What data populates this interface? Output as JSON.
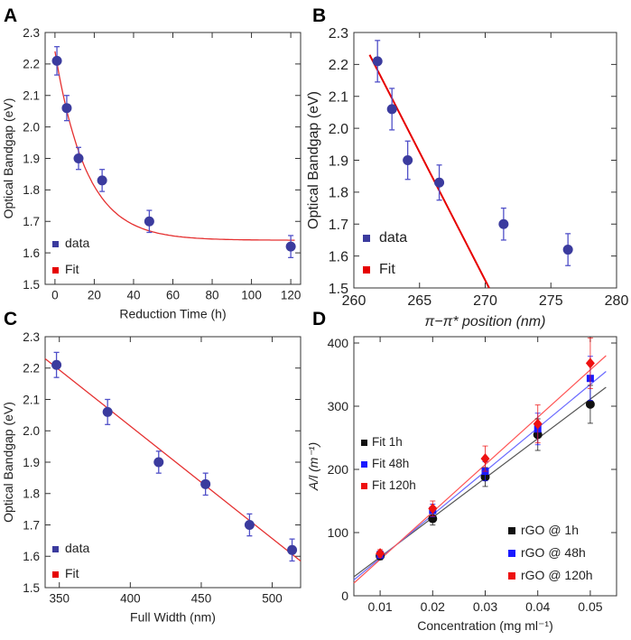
{
  "colors": {
    "marker": "#3b3b9e",
    "error": "#5050c8",
    "fit": "#e53030",
    "fit_bright": "#e60000",
    "black": "#111111",
    "blue": "#1a1aff",
    "red": "#ee1111",
    "axis": "#333333"
  },
  "chart_data": [
    {
      "panel": "A",
      "type": "scatter",
      "xlabel": "Reduction Time (h)",
      "ylabel": "Optical Bandgap (eV)",
      "xlim": [
        -5,
        125
      ],
      "ylim": [
        1.5,
        2.3
      ],
      "xticks": [
        0,
        20,
        40,
        60,
        80,
        100,
        120
      ],
      "yticks": [
        1.5,
        1.6,
        1.7,
        1.8,
        1.9,
        2.0,
        2.1,
        2.2,
        2.3
      ],
      "xtick_labels": [
        "0",
        "20",
        "40",
        "60",
        "80",
        "100",
        "120"
      ],
      "ytick_labels": [
        "1.5",
        "1.6",
        "1.7",
        "1.8",
        "1.9",
        "2.0",
        "2.1",
        "2.2",
        "2.3"
      ],
      "x": [
        1,
        6,
        12,
        24,
        48,
        120
      ],
      "y": [
        2.21,
        2.06,
        1.9,
        1.83,
        1.7,
        1.62
      ],
      "yerr": [
        0.045,
        0.04,
        0.035,
        0.035,
        0.035,
        0.035
      ],
      "fit": {
        "kind": "exp",
        "A": 0.6,
        "tau": 16,
        "c": 1.64
      },
      "legend": [
        "data",
        "Fit"
      ]
    },
    {
      "panel": "B",
      "type": "scatter",
      "xlabel": "π−π* position (nm)",
      "ylabel": "Optical Bandgap (eV)",
      "xlim": [
        260,
        280
      ],
      "ylim": [
        1.5,
        2.3
      ],
      "xticks": [
        260,
        265,
        270,
        275,
        280
      ],
      "yticks": [
        1.5,
        1.6,
        1.7,
        1.8,
        1.9,
        2.0,
        2.1,
        2.2,
        2.3
      ],
      "xtick_labels": [
        "260",
        "265",
        "270",
        "275",
        "280"
      ],
      "ytick_labels": [
        "1.5",
        "1.6",
        "1.7",
        "1.8",
        "1.9",
        "2.0",
        "2.1",
        "2.2",
        "2.3"
      ],
      "x": [
        261.8,
        262.9,
        264.1,
        266.5,
        271.4,
        276.3
      ],
      "y": [
        2.21,
        2.06,
        1.9,
        1.83,
        1.7,
        1.62
      ],
      "yerr": [
        0.065,
        0.065,
        0.06,
        0.055,
        0.05,
        0.05
      ],
      "fit": {
        "kind": "line",
        "x0": 261.2,
        "y0": 2.23,
        "x1": 270.3,
        "y1": 1.5
      },
      "legend": [
        "data",
        "Fit"
      ]
    },
    {
      "panel": "C",
      "type": "scatter",
      "xlabel": "Full Width (nm)",
      "ylabel": "Optical Bandgap (eV)",
      "xlim": [
        340,
        520
      ],
      "ylim": [
        1.5,
        2.3
      ],
      "xticks": [
        350,
        400,
        450,
        500
      ],
      "yticks": [
        1.5,
        1.6,
        1.7,
        1.8,
        1.9,
        2.0,
        2.1,
        2.2,
        2.3
      ],
      "xtick_labels": [
        "350",
        "400",
        "450",
        "500"
      ],
      "ytick_labels": [
        "1.5",
        "1.6",
        "1.7",
        "1.8",
        "1.9",
        "2.0",
        "2.1",
        "2.2",
        "2.3"
      ],
      "x": [
        348,
        384,
        420,
        453,
        484,
        514
      ],
      "y": [
        2.21,
        2.06,
        1.9,
        1.83,
        1.7,
        1.62
      ],
      "yerr": [
        0.04,
        0.04,
        0.035,
        0.035,
        0.035,
        0.035
      ],
      "fit": {
        "kind": "line",
        "x0": 340,
        "y0": 2.23,
        "x1": 520,
        "y1": 1.585
      },
      "legend": [
        "data",
        "Fit"
      ]
    },
    {
      "panel": "D",
      "type": "scatter",
      "xlabel": "Concentration (mg ml⁻¹)",
      "ylabel": "A/l (m⁻¹)",
      "xlim": [
        0.005,
        0.055
      ],
      "ylim": [
        0,
        410
      ],
      "xticks": [
        0.01,
        0.02,
        0.03,
        0.04,
        0.05
      ],
      "yticks": [
        0,
        100,
        200,
        300,
        400
      ],
      "xtick_labels": [
        "0.01",
        "0.02",
        "0.03",
        "0.04",
        "0.05"
      ],
      "ytick_labels": [
        "0",
        "100",
        "200",
        "300",
        "400"
      ],
      "x": [
        0.01,
        0.02,
        0.03,
        0.04,
        0.05
      ],
      "series": [
        {
          "name": "rGO @ 1h",
          "fit_name": "Fit 1h",
          "color": "black",
          "marker": "circle",
          "values": [
            63,
            122,
            188,
            255,
            303
          ],
          "yerr": [
            6,
            10,
            15,
            25,
            30
          ],
          "fit": [
            30,
            330
          ]
        },
        {
          "name": "rGO @ 48h",
          "fit_name": "Fit 48h",
          "color": "blue",
          "marker": "square",
          "values": [
            65,
            135,
            197,
            264,
            344
          ],
          "yerr": [
            6,
            10,
            15,
            25,
            35
          ],
          "fit": [
            25,
            355
          ]
        },
        {
          "name": "rGO @ 120h",
          "fit_name": "Fit 120h",
          "color": "red",
          "marker": "diamond",
          "values": [
            67,
            138,
            217,
            272,
            368
          ],
          "yerr": [
            6,
            12,
            20,
            30,
            40
          ],
          "fit": [
            20,
            380
          ]
        }
      ]
    }
  ],
  "panel_labels": [
    "A",
    "B",
    "C",
    "D"
  ]
}
